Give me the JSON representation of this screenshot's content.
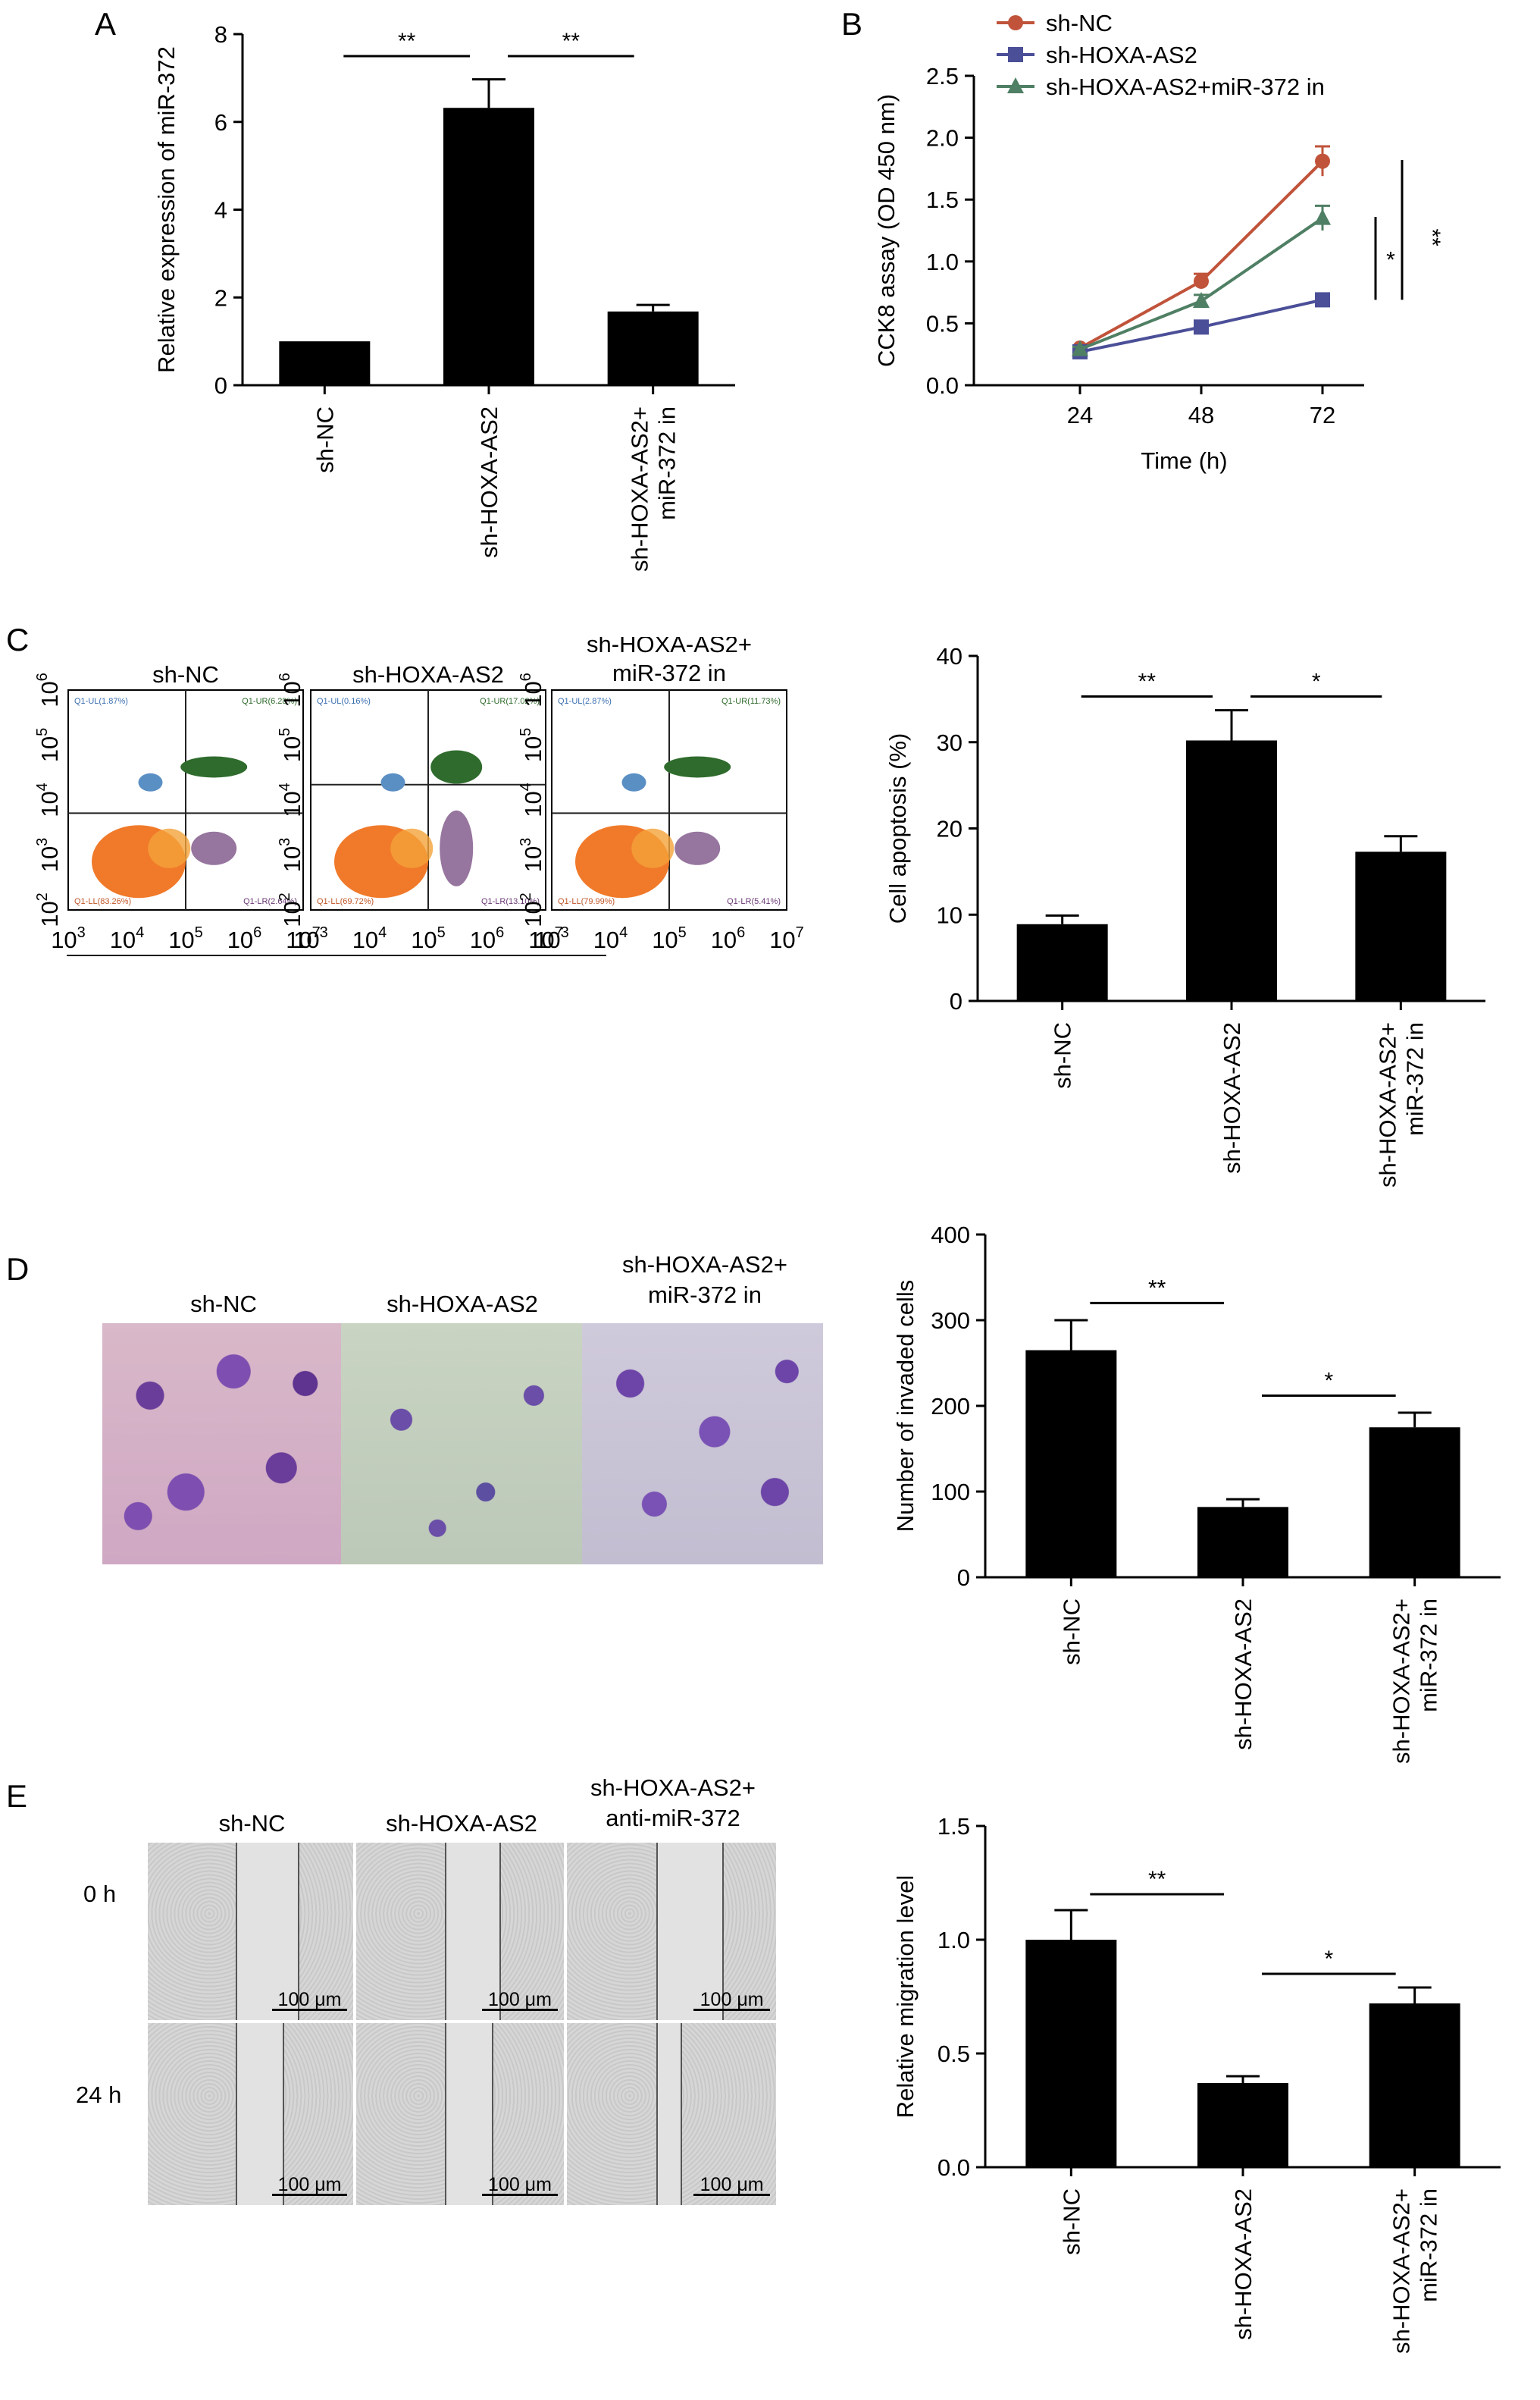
{
  "panels": {
    "A": {
      "label": "A"
    },
    "B": {
      "label": "B"
    },
    "C": {
      "label": "C",
      "flow_titles": [
        "sh-NC",
        "sh-HOXA-AS2",
        "sh-HOXA-AS2+\nmiR-372 in"
      ],
      "flow_quadrants": [
        {
          "ul": "Q1-UL(1.87%)",
          "ur": "Q1-UR(6.28%)",
          "ll": "Q1-LL(83.26%)",
          "lr": "Q1-LR(2.64%)"
        },
        {
          "ul": "Q1-UL(0.16%)",
          "ur": "Q1-UR(17.02%)",
          "ll": "Q1-LL(69.72%)",
          "lr": "Q1-LR(13.10%)"
        },
        {
          "ul": "Q1-UL(2.87%)",
          "ur": "Q1-UR(11.73%)",
          "ll": "Q1-LL(79.99%)",
          "lr": "Q1-LR(5.41%)"
        }
      ],
      "flow_axis_exponents_x": [
        "3",
        "4",
        "5",
        "6",
        "7"
      ],
      "flow_axis_exponents_y": [
        "2",
        "3",
        "4",
        "5",
        "6"
      ]
    },
    "D": {
      "label": "D",
      "image_titles": [
        "sh-NC",
        "sh-HOXA-AS2",
        "sh-HOXA-AS2+\nmiR-372 in"
      ]
    },
    "E": {
      "label": "E",
      "image_titles": [
        "sh-NC",
        "sh-HOXA-AS2",
        "sh-HOXA-AS2+\nanti-miR-372"
      ],
      "row_labels": [
        "0 h",
        "24 h"
      ],
      "scale_bar": "100 μm"
    }
  },
  "colors": {
    "bar": "#000000",
    "sh_nc": "#c0533a",
    "sh_hoxa": "#4b4f98",
    "sh_hoxa_mir": "#4f7f64"
  },
  "chart_data": [
    {
      "id": "A",
      "type": "bar",
      "categories": [
        "sh-NC",
        "sh-HOXA-AS2",
        "sh-HOXA-AS2+\nmiR-372 in"
      ],
      "values": [
        1.0,
        6.32,
        1.68
      ],
      "errors": [
        0.0,
        0.65,
        0.15
      ],
      "ylabel": "Relative expression of miR-372",
      "ylim": [
        0,
        8
      ],
      "yticks": [
        0,
        2,
        4,
        6,
        8
      ],
      "significance": [
        {
          "from": 0,
          "to": 1,
          "y": 7.5,
          "text": "**"
        },
        {
          "from": 1,
          "to": 2,
          "y": 7.5,
          "text": "**"
        }
      ]
    },
    {
      "id": "B",
      "type": "line",
      "x": [
        24,
        48,
        72
      ],
      "xlabel": "Time (h)",
      "ylabel": "CCK8 assay (OD 450 nm)",
      "ylim": [
        0,
        2.5
      ],
      "yticks": [
        0.0,
        0.5,
        1.0,
        1.5,
        2.0,
        2.5
      ],
      "legend_position": "top-left",
      "series": [
        {
          "name": "sh-NC",
          "values": [
            0.3,
            0.84,
            1.81
          ],
          "errors": [
            0.02,
            0.06,
            0.12
          ],
          "marker": "circle"
        },
        {
          "name": "sh-HOXA-AS2",
          "values": [
            0.27,
            0.47,
            0.69
          ],
          "errors": [
            0.02,
            0.03,
            0.05
          ],
          "marker": "square"
        },
        {
          "name": "sh-HOXA-AS2+miR-372 in",
          "values": [
            0.29,
            0.68,
            1.35
          ],
          "errors": [
            0.02,
            0.05,
            0.1
          ],
          "marker": "triangle"
        }
      ],
      "significance": [
        {
          "text": "*",
          "between": [
            "sh-HOXA-AS2",
            "sh-HOXA-AS2+miR-372 in"
          ]
        },
        {
          "text": "**",
          "between": [
            "sh-HOXA-AS2",
            "sh-NC"
          ]
        }
      ]
    },
    {
      "id": "C",
      "type": "bar",
      "categories": [
        "sh-NC",
        "sh-HOXA-AS2",
        "sh-HOXA-AS2+\nmiR-372 in"
      ],
      "values": [
        8.9,
        30.2,
        17.3
      ],
      "errors": [
        1.0,
        3.5,
        1.8
      ],
      "ylabel": "Cell apoptosis (%)",
      "ylim": [
        0,
        40
      ],
      "yticks": [
        0,
        10,
        20,
        30,
        40
      ],
      "significance": [
        {
          "from": 0,
          "to": 1,
          "y": 35.3,
          "text": "**"
        },
        {
          "from": 1,
          "to": 2,
          "y": 35.3,
          "text": "*"
        }
      ]
    },
    {
      "id": "D",
      "type": "bar",
      "categories": [
        "sh-NC",
        "sh-HOXA-AS2",
        "sh-HOXA-AS2+\nmiR-372 in"
      ],
      "values": [
        265,
        82,
        175
      ],
      "errors": [
        35,
        9,
        17
      ],
      "ylabel": "Number of invaded cells",
      "ylim": [
        0,
        400
      ],
      "yticks": [
        0,
        100,
        200,
        300,
        400
      ],
      "significance": [
        {
          "from": 0,
          "to": 1,
          "y": 320,
          "text": "**"
        },
        {
          "from": 1,
          "to": 2,
          "y": 212,
          "text": "*"
        }
      ]
    },
    {
      "id": "E",
      "type": "bar",
      "categories": [
        "sh-NC",
        "sh-HOXA-AS2",
        "sh-HOXA-AS2+\nmiR-372 in"
      ],
      "values": [
        1.0,
        0.37,
        0.72
      ],
      "errors": [
        0.13,
        0.03,
        0.07
      ],
      "ylabel": "Relative migration level",
      "ylim": [
        0,
        1.5
      ],
      "yticks": [
        0.0,
        0.5,
        1.0,
        1.5
      ],
      "significance": [
        {
          "from": 0,
          "to": 1,
          "y": 1.2,
          "text": "**"
        },
        {
          "from": 1,
          "to": 2,
          "y": 0.85,
          "text": "*"
        }
      ]
    }
  ]
}
